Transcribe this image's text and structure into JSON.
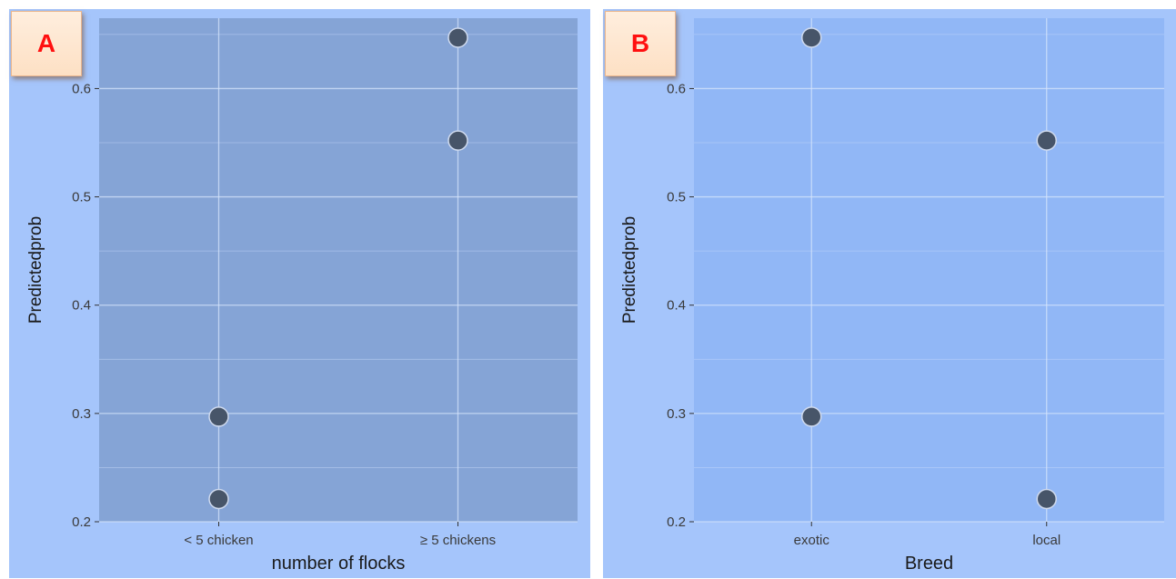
{
  "chart_data": [
    {
      "type": "scatter",
      "panel_label": "A",
      "xlabel": "number of flocks",
      "ylabel": "Predictedprob",
      "categories": [
        "< 5 chicken",
        "≥ 5 chickens"
      ],
      "points": [
        {
          "x": "< 5 chicken",
          "y": 0.297
        },
        {
          "x": "< 5 chicken",
          "y": 0.221
        },
        {
          "x": "≥ 5 chickens",
          "y": 0.647
        },
        {
          "x": "≥ 5 chickens",
          "y": 0.552
        }
      ],
      "yticks": [
        "0.2",
        "0.3",
        "0.4",
        "0.5",
        "0.6"
      ],
      "ylim": [
        0.2,
        0.665
      ],
      "grid": true,
      "colors": {
        "panel": "#85a4d6",
        "point": "#475569"
      }
    },
    {
      "type": "scatter",
      "panel_label": "B",
      "xlabel": "Breed",
      "ylabel": "Predictedprob",
      "categories": [
        "exotic",
        "local"
      ],
      "points": [
        {
          "x": "exotic",
          "y": 0.647
        },
        {
          "x": "exotic",
          "y": 0.297
        },
        {
          "x": "local",
          "y": 0.552
        },
        {
          "x": "local",
          "y": 0.221
        }
      ],
      "yticks": [
        "0.2",
        "0.3",
        "0.4",
        "0.5",
        "0.6"
      ],
      "ylim": [
        0.2,
        0.665
      ],
      "grid": true,
      "colors": {
        "panel": "#91b7f6",
        "point": "#475569"
      }
    }
  ]
}
